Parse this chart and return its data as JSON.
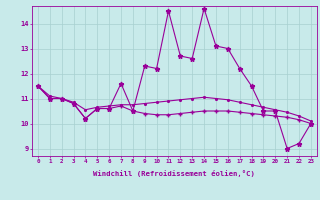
{
  "title": "",
  "xlabel": "Windchill (Refroidissement éolien,°C)",
  "background_color": "#c8eaea",
  "grid_color": "#a8d0d0",
  "line_color": "#990099",
  "x_values": [
    0,
    1,
    2,
    3,
    4,
    5,
    6,
    7,
    8,
    9,
    10,
    11,
    12,
    13,
    14,
    15,
    16,
    17,
    18,
    19,
    20,
    21,
    22,
    23
  ],
  "line_jagged": [
    11.5,
    11.0,
    11.0,
    10.8,
    10.2,
    10.6,
    10.6,
    11.6,
    10.5,
    12.3,
    12.2,
    14.5,
    12.7,
    12.6,
    14.6,
    13.1,
    13.0,
    12.2,
    11.5,
    10.5,
    10.5,
    9.0,
    9.2,
    10.0
  ],
  "line_smooth": [
    11.5,
    11.1,
    11.0,
    10.85,
    10.55,
    10.65,
    10.7,
    10.75,
    10.75,
    10.8,
    10.85,
    10.9,
    10.95,
    11.0,
    11.05,
    11.0,
    10.95,
    10.85,
    10.75,
    10.65,
    10.55,
    10.45,
    10.3,
    10.1
  ],
  "line_lower": [
    11.5,
    11.0,
    11.0,
    10.8,
    10.2,
    10.6,
    10.6,
    10.7,
    10.5,
    10.4,
    10.35,
    10.35,
    10.4,
    10.45,
    10.5,
    10.5,
    10.5,
    10.45,
    10.4,
    10.35,
    10.3,
    10.25,
    10.15,
    10.0
  ],
  "ylim": [
    8.7,
    14.7
  ],
  "xlim": [
    -0.5,
    23.5
  ],
  "yticks": [
    9,
    10,
    11,
    12,
    13,
    14
  ],
  "xticks": [
    0,
    1,
    2,
    3,
    4,
    5,
    6,
    7,
    8,
    9,
    10,
    11,
    12,
    13,
    14,
    15,
    16,
    17,
    18,
    19,
    20,
    21,
    22,
    23
  ],
  "xtick_labels": [
    "0",
    "1",
    "2",
    "3",
    "4",
    "5",
    "6",
    "7",
    "8",
    "9",
    "10",
    "11",
    "12",
    "13",
    "14",
    "15",
    "16",
    "17",
    "18",
    "19",
    "20",
    "21",
    "22",
    "23"
  ]
}
